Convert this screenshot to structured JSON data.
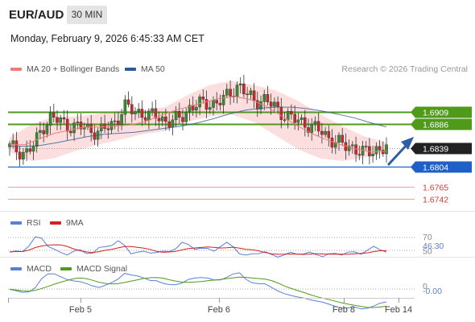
{
  "header": {
    "symbol": "EUR/AUD",
    "timeframe": "30 MIN",
    "datetime": "Monday, February 9, 2026 6:45:33 AM CET"
  },
  "price_panel": {
    "legend": [
      {
        "label": "MA 20 + Bollinger Bands",
        "color": "#f07b7b"
      },
      {
        "label": "MA 50",
        "color": "#2d5b9a"
      }
    ],
    "credit": "Research © 2026 Trading Central",
    "levels": [
      {
        "value": 1.6909,
        "label": "1.6909",
        "type": "resistance",
        "color": "#4f9a1b"
      },
      {
        "value": 1.6886,
        "label": "1.6886",
        "type": "resistance",
        "color": "#4f9a1b"
      },
      {
        "value": 1.6839,
        "label": "1.6839",
        "type": "last",
        "color": "#222222"
      },
      {
        "value": 1.6804,
        "label": "1.6804",
        "type": "pivot",
        "color": "#1f5fc8"
      },
      {
        "value": 1.6765,
        "label": "1.6765",
        "type": "support",
        "color": "#e06060"
      },
      {
        "value": 1.6742,
        "label": "1.6742",
        "type": "support",
        "color": "#e06060"
      }
    ]
  },
  "rsi_panel": {
    "legend": [
      {
        "label": "RSI",
        "color": "#5b7fd6"
      },
      {
        "label": "9MA",
        "color": "#d61f1f"
      }
    ],
    "levels": [
      {
        "label": "70",
        "value": 70
      },
      {
        "label": "50",
        "value": 50
      }
    ],
    "last_label": "46.30"
  },
  "macd_panel": {
    "legend": [
      {
        "label": "MACD",
        "color": "#5b7fd6"
      },
      {
        "label": "MACD Signal",
        "color": "#4f9a1b"
      }
    ],
    "zero_label": "0",
    "last_label": "-0.00"
  },
  "x_axis": {
    "ticks": [
      "Feb 5",
      "Feb 6",
      "Feb 8",
      "Feb 14"
    ]
  },
  "chart_data": {
    "type": "line",
    "instrument": "EUR/AUD",
    "y_range": [
      1.6735,
      1.6975
    ],
    "close_path": [
      1.6842,
      1.6835,
      1.683,
      1.6845,
      1.688,
      1.6898,
      1.6892,
      1.6884,
      1.688,
      1.688,
      1.6874,
      1.687,
      1.688,
      1.6892,
      1.6918,
      1.6912,
      1.6908,
      1.69,
      1.6902,
      1.6892,
      1.689,
      1.69,
      1.6918,
      1.6922,
      1.6926,
      1.6925,
      1.693,
      1.6948,
      1.696,
      1.694,
      1.693,
      1.6933,
      1.6922,
      1.691,
      1.69,
      1.6892,
      1.6888,
      1.688,
      1.6871,
      1.686,
      1.685,
      1.6843,
      1.6842,
      1.683,
      1.6832,
      1.684,
      1.6839
    ],
    "ma50_path": [
      1.6843,
      1.6843,
      1.6845,
      1.685,
      1.6856,
      1.6862,
      1.6866,
      1.6868,
      1.687,
      1.6874,
      1.6878,
      1.6882,
      1.6888,
      1.6896,
      1.6905,
      1.6912,
      1.6916,
      1.6918,
      1.6918,
      1.6915,
      1.691,
      1.6904,
      1.6897,
      1.6888,
      1.688
    ],
    "ma20_path": [
      1.6846,
      1.6846,
      1.6858,
      1.6868,
      1.6874,
      1.688,
      1.688,
      1.6882,
      1.6884,
      1.689,
      1.6902,
      1.6912,
      1.692,
      1.6928,
      1.6935,
      1.6938,
      1.6932,
      1.692,
      1.6902,
      1.6884,
      1.6868,
      1.6856,
      1.6846,
      1.6838,
      1.6832,
      1.6834
    ],
    "bb_upper_path": [
      1.686,
      1.6885,
      1.69,
      1.69,
      1.6905,
      1.6912,
      1.6912,
      1.6918,
      1.694,
      1.696,
      1.6968,
      1.696,
      1.695,
      1.693,
      1.6905,
      1.6882,
      1.6862,
      1.685
    ],
    "bb_lower_path": [
      1.6832,
      1.6815,
      1.682,
      1.6835,
      1.6846,
      1.6856,
      1.6866,
      1.6872,
      1.689,
      1.69,
      1.6904,
      1.689,
      1.6864,
      1.6838,
      1.682,
      1.6815,
      1.6822,
      1.683
    ]
  }
}
